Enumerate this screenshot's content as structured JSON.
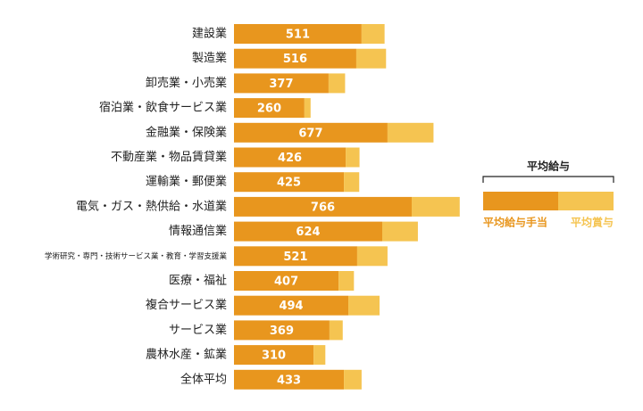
{
  "chart_data": {
    "type": "bar",
    "stacked": true,
    "orientation": "horizontal",
    "legend_title": "平均給与",
    "categories": [
      "建設業",
      "製造業",
      "卸売業・小売業",
      "宿泊業・飲食サービス業",
      "金融業・保険業",
      "不動産業・物品賃貸業",
      "運輸業・郵便業",
      "電気・ガス・熱供給・水道業",
      "情報通信業",
      "学術研究・専門・技術サービス業・教育・学習支援業",
      "医療・福祉",
      "複合サービス業",
      "サービス業",
      "農林水産・鉱業",
      "全体平均"
    ],
    "series": [
      {
        "name": "平均給与手当",
        "color": "#e8961e",
        "values": [
          433,
          415,
          321,
          239,
          521,
          379,
          373,
          603,
          503,
          418,
          355,
          388,
          324,
          270,
          373
        ]
      },
      {
        "name": "平均賞与",
        "color": "#f5c451",
        "values": [
          78,
          101,
          56,
          21,
          156,
          47,
          52,
          163,
          121,
          103,
          52,
          106,
          45,
          40,
          60
        ]
      }
    ],
    "totals": [
      511,
      516,
      377,
      260,
      677,
      426,
      425,
      766,
      624,
      521,
      407,
      494,
      369,
      310,
      433
    ]
  }
}
